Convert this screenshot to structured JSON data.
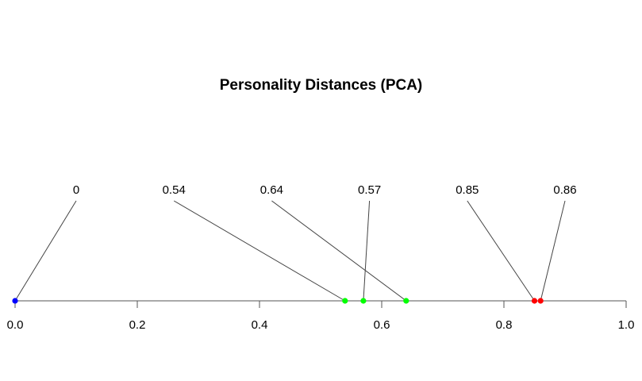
{
  "chart_data": {
    "type": "scatter",
    "title": "Personality Distances (PCA)",
    "xlabel": "",
    "ylabel": "",
    "xlim": [
      0.0,
      1.0
    ],
    "x_ticks": [
      "0.0",
      "0.2",
      "0.4",
      "0.6",
      "0.8",
      "1.0"
    ],
    "x_tick_values": [
      0.0,
      0.2,
      0.4,
      0.6,
      0.8,
      1.0
    ],
    "grid": false,
    "points": [
      {
        "x": 0.0,
        "label": "0",
        "color": "#0000ff"
      },
      {
        "x": 0.54,
        "label": "0.54",
        "color": "#00ff00"
      },
      {
        "x": 0.64,
        "label": "0.64",
        "color": "#00ff00"
      },
      {
        "x": 0.57,
        "label": "0.57",
        "color": "#00ff00"
      },
      {
        "x": 0.85,
        "label": "0.85",
        "color": "#ff0000"
      },
      {
        "x": 0.86,
        "label": "0.86",
        "color": "#ff0000"
      }
    ]
  }
}
